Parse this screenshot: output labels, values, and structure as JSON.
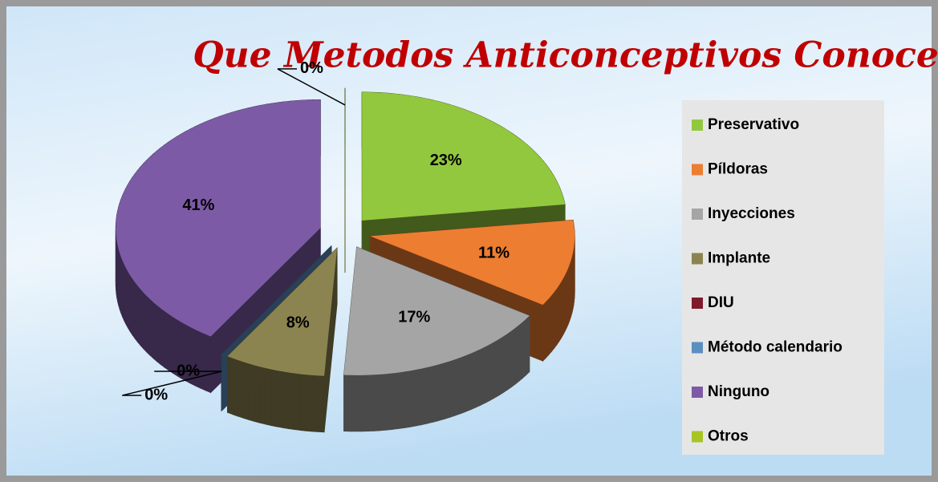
{
  "chart_data": {
    "type": "pie",
    "title": "Que Metodos Anticonceptivos Conoce?",
    "categories": [
      "Preservativo",
      "Píldoras",
      "Inyecciones",
      "Implante",
      "DIU",
      "Método calendario",
      "Ninguno",
      "Otros"
    ],
    "values": [
      23,
      11,
      17,
      8,
      0,
      0,
      41,
      0
    ],
    "value_labels": [
      "23%",
      "11%",
      "17%",
      "8%",
      "0%",
      "0%",
      "41%",
      "0%"
    ],
    "colors": [
      "#92c83e",
      "#ed7d31",
      "#a5a5a5",
      "#8c8450",
      "#7f1a2a",
      "#5a8fc0",
      "#7d5aa6",
      "#a8c424"
    ],
    "legend": "right"
  }
}
